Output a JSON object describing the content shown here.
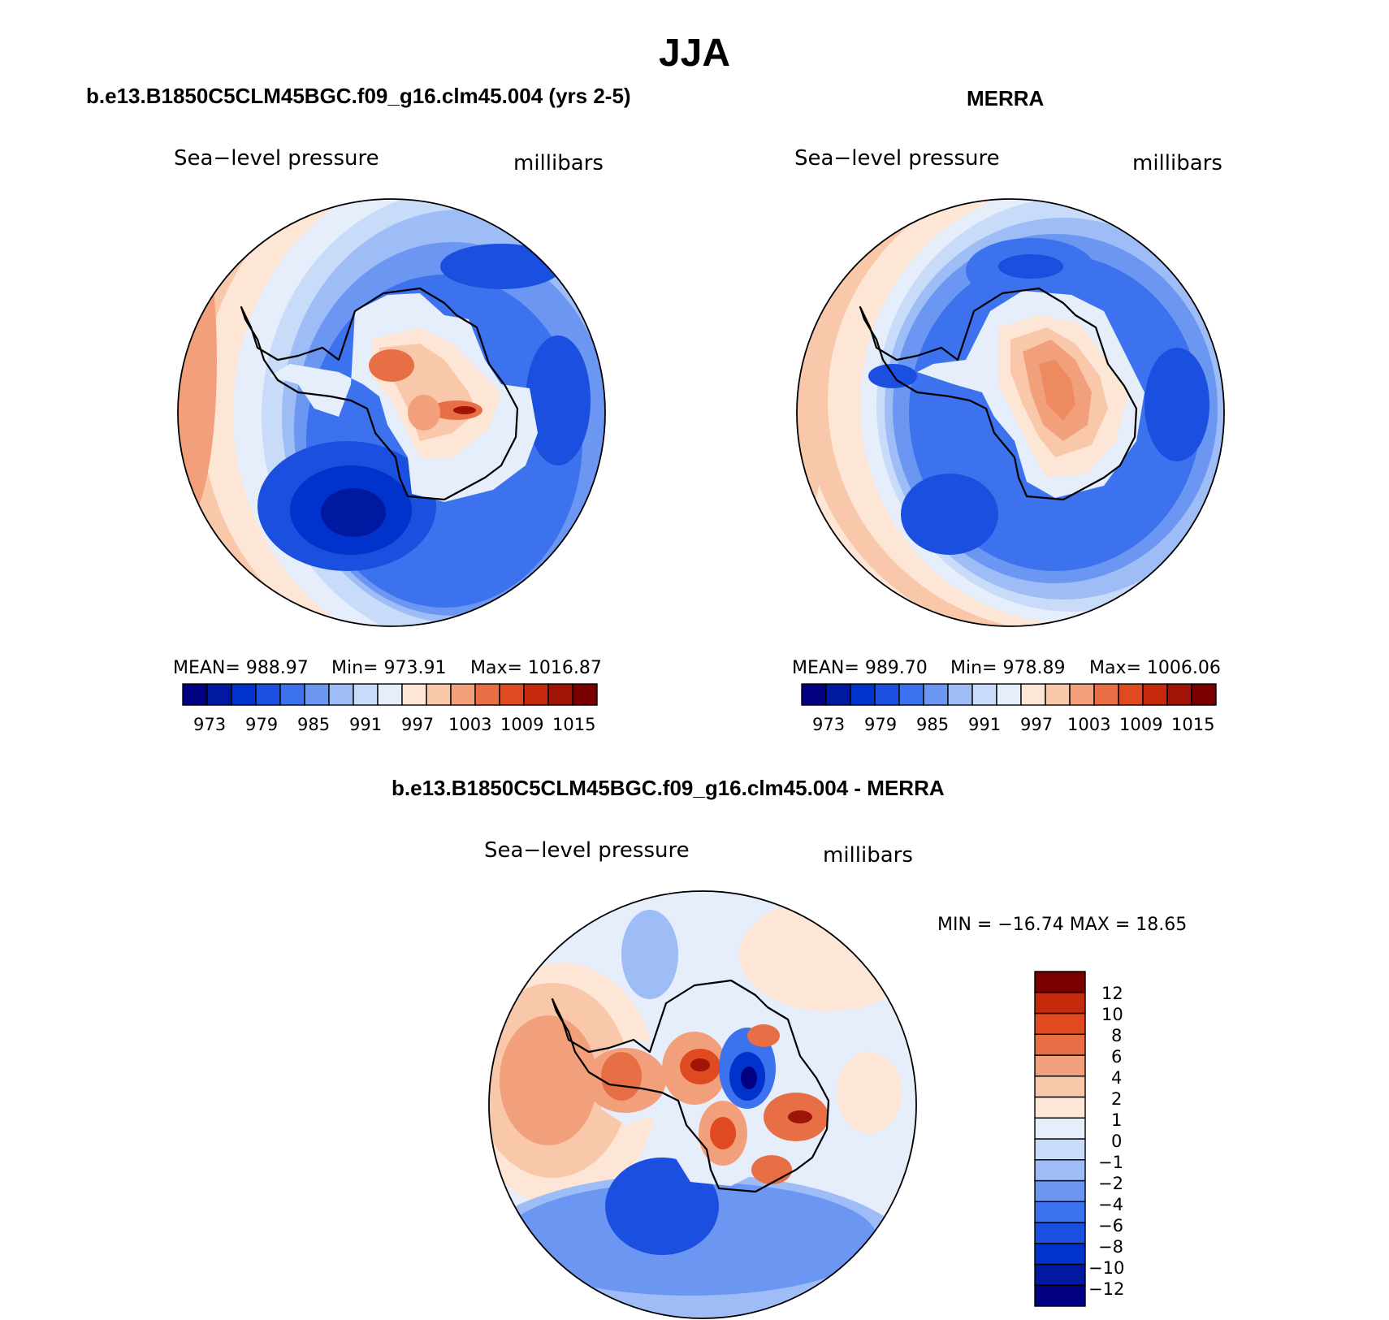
{
  "figure": {
    "title": "JJA"
  },
  "colors": {
    "abs_scale": [
      "#000080",
      "#0019a0",
      "#0033cc",
      "#1a4fe0",
      "#3d72ee",
      "#6b96f2",
      "#9ebdf6",
      "#c8dcfa",
      "#e6eefb",
      "#fde6d6",
      "#f9c7aa",
      "#f2a07c",
      "#e86f45",
      "#e04a20",
      "#c52a0c",
      "#a01407",
      "#7a0000"
    ],
    "diff_scale": [
      "#000080",
      "#0019a0",
      "#0033cc",
      "#1a4fe0",
      "#3d72ee",
      "#6b96f2",
      "#9ebdf6",
      "#c8dcfa",
      "#e6eefb",
      "#fde6d6",
      "#f9c7aa",
      "#f2a07c",
      "#e86f45",
      "#e04a20",
      "#c52a0c",
      "#7a0000"
    ]
  },
  "panels": [
    {
      "title": "b.e13.B1850C5CLM45BGC.f09_g16.clm45.004 (yrs 2-5)",
      "variable": "Sea−level pressure",
      "units": "millibars",
      "stats": {
        "mean_label": "MEAN= 988.97",
        "min_label": "Min= 973.91",
        "max_label": "Max= 1016.87"
      },
      "colorbar_ticks": [
        "973",
        "979",
        "985",
        "991",
        "997",
        "1003",
        "1009",
        "1015"
      ]
    },
    {
      "title": "MERRA",
      "variable": "Sea−level pressure",
      "units": "millibars",
      "stats": {
        "mean_label": "MEAN= 989.70",
        "min_label": "Min= 978.89",
        "max_label": "Max= 1006.06"
      },
      "colorbar_ticks": [
        "973",
        "979",
        "985",
        "991",
        "997",
        "1003",
        "1009",
        "1015"
      ]
    },
    {
      "title": "b.e13.B1850C5CLM45BGC.f09_g16.clm45.004 - MERRA",
      "variable": "Sea−level pressure",
      "units": "millibars",
      "stats": {
        "minmax_label": "MIN = −16.74 MAX =   18.65"
      },
      "colorbar_ticks": [
        "12",
        "10",
        "8",
        "6",
        "4",
        "2",
        "1",
        "0",
        "−1",
        "−2",
        "−4",
        "−6",
        "−8",
        "−10",
        "−12"
      ]
    }
  ]
}
